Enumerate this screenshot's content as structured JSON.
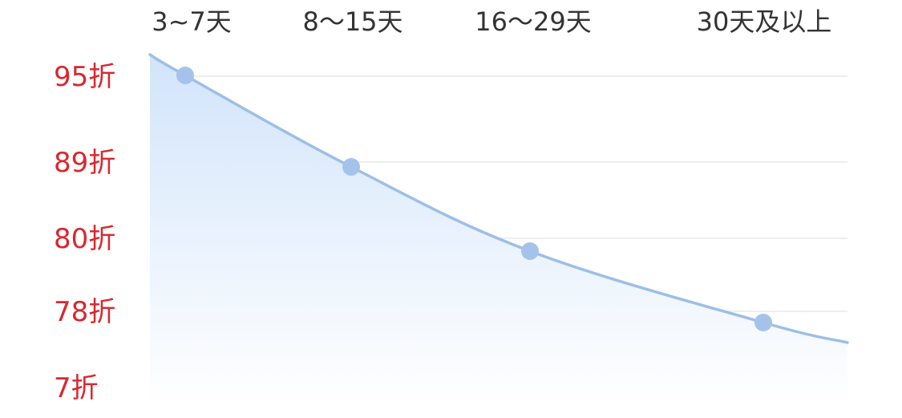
{
  "chart_data": {
    "type": "area",
    "categories": [
      "3~7天",
      "8～15天",
      "16～29天",
      "30天及以上"
    ],
    "y_tick_labels": [
      "95折",
      "89折",
      "80折",
      "78折",
      "7折"
    ],
    "values": [
      95,
      89,
      80,
      78
    ],
    "grid": true,
    "colors": {
      "line": "#9dbfe6",
      "point": "#a5c3ea",
      "area_top": "#d2e4fb",
      "area_bottom": "#ffffff",
      "y_label": "#d9272e",
      "x_label": "#333333",
      "grid": "#eeeeee"
    }
  }
}
